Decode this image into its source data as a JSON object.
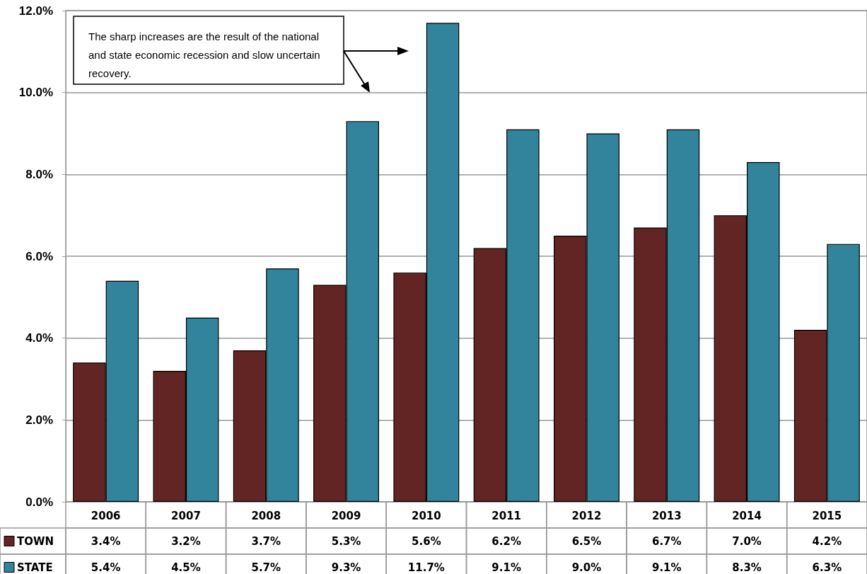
{
  "chart_data": {
    "type": "bar",
    "categories": [
      "2006",
      "2007",
      "2008",
      "2009",
      "2010",
      "2011",
      "2012",
      "2013",
      "2014",
      "2015"
    ],
    "series": [
      {
        "name": "TOWN",
        "color": "#632523",
        "values": [
          3.4,
          3.2,
          3.7,
          5.3,
          5.6,
          6.2,
          6.5,
          6.7,
          7.0,
          4.2
        ],
        "value_labels": [
          "3.4%",
          "3.2%",
          "3.7%",
          "5.3%",
          "5.6%",
          "6.2%",
          "6.5%",
          "6.7%",
          "7.0%",
          "4.2%"
        ]
      },
      {
        "name": "STATE",
        "color": "#31849b",
        "values": [
          5.4,
          4.5,
          5.7,
          9.3,
          11.7,
          9.1,
          9.0,
          9.1,
          8.3,
          6.3
        ],
        "value_labels": [
          "5.4%",
          "4.5%",
          "5.7%",
          "9.3%",
          "11.7%",
          "9.1%",
          "9.0%",
          "9.1%",
          "8.3%",
          "6.3%"
        ]
      }
    ],
    "ylim": [
      0,
      12
    ],
    "yticks": [
      {
        "value": 0,
        "label": "0.0%"
      },
      {
        "value": 2,
        "label": "2.0%"
      },
      {
        "value": 4,
        "label": "4.0%"
      },
      {
        "value": 6,
        "label": "6.0%"
      },
      {
        "value": 8,
        "label": "8.0%"
      },
      {
        "value": 10,
        "label": "10.0%"
      },
      {
        "value": 12,
        "label": "12.0%"
      }
    ],
    "grid": "y",
    "legend": "bottom",
    "annotations": [
      "The sharp increases are the result of the national and state economic recession and slow uncertain recovery."
    ]
  }
}
